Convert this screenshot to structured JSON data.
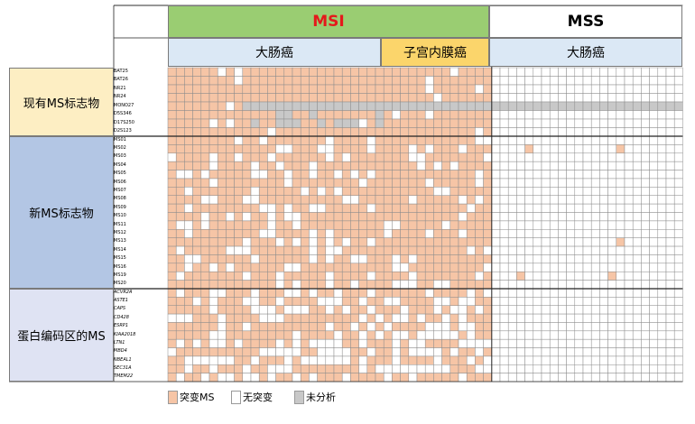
{
  "header": {
    "msi": "MSI",
    "mss": "MSS",
    "colorectal_msi": "大肠癌",
    "endometrial_msi": "子宫内膜癌",
    "colorectal_mss": "大肠癌"
  },
  "groups": {
    "existing": "现有MS标志物",
    "novel": "新MS标志物",
    "coding": "蛋白编码区的MS"
  },
  "rows": {
    "existing": [
      "BAT25",
      "BAT26",
      "NR21",
      "NR24",
      "MONO27",
      "D5S346",
      "D17S250",
      "D2S123"
    ],
    "novel": [
      "MS01",
      "MS02",
      "MS03",
      "MS04",
      "MS05",
      "MS06",
      "MS07",
      "MS08",
      "MS09",
      "MS10",
      "MS11",
      "MS12",
      "MS13",
      "MS14",
      "MS15",
      "MS16",
      "MS19",
      "MS20"
    ],
    "coding": [
      "ACVR2A",
      "ASTE1",
      "CAPS",
      "CD428",
      "ESRP1",
      "KIAA2018",
      "LTN1",
      "MBD4",
      "NBEAL1",
      "SEC31A",
      "TMEM22"
    ]
  },
  "legend": {
    "mutated": "突变MS",
    "none": "无突变",
    "na": "未分析"
  },
  "colors": {
    "mutated": "#f6c5a6",
    "none": "#ffffff",
    "na": "#c8c8c8",
    "msi_header": "#9acd72",
    "msi_text": "#e4191b",
    "sub_header": "#dbe8f5",
    "endometrial_header": "#fbd56b",
    "existing_group": "#fdeec3",
    "novel_group": "#b3c6e4",
    "coding_group": "#dfe3f3"
  }
}
